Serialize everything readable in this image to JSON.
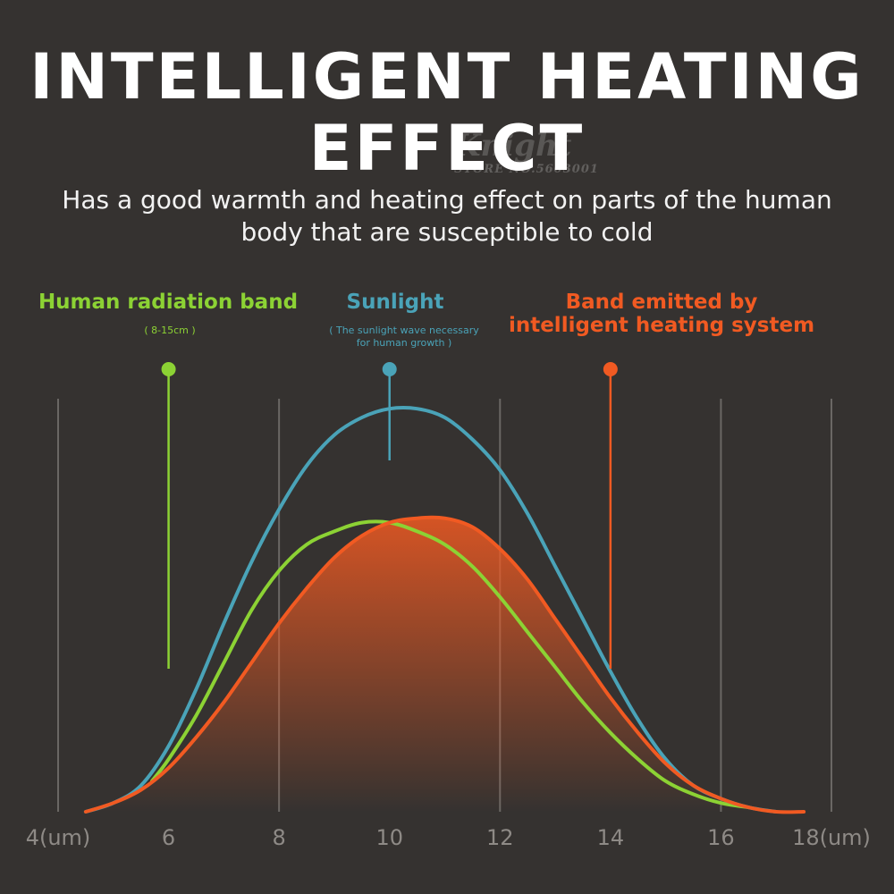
{
  "header": {
    "title_line1": "INTELLIGENT HEATING",
    "title_line2": "EFFECT",
    "subtitle_line1": "Has a good warmth and heating effect on parts of the human",
    "subtitle_line2": "body that are susceptible to cold",
    "watermark_logo": "Knight",
    "watermark_store": "STORE NO.5603001"
  },
  "colors": {
    "background": "#353230",
    "green": "#8cd234",
    "blue": "#4aa3b8",
    "orange": "#f15a22",
    "gridline": "#6a6764",
    "tick_text": "#8e8a86"
  },
  "chart_data": {
    "type": "line",
    "x_ticks": [
      {
        "value": 4,
        "label": "4(um)"
      },
      {
        "value": 6,
        "label": "6"
      },
      {
        "value": 8,
        "label": "8"
      },
      {
        "value": 10,
        "label": "10"
      },
      {
        "value": 12,
        "label": "12"
      },
      {
        "value": 14,
        "label": "14"
      },
      {
        "value": 16,
        "label": "16"
      },
      {
        "value": 18,
        "label": "18(um)"
      }
    ],
    "xlim": [
      4,
      18
    ],
    "ylim": [
      0,
      1
    ],
    "gridlines": [
      4,
      8,
      12,
      16,
      18
    ],
    "series": [
      {
        "name": "Human radiation band",
        "note": "( 8-15cm )",
        "color": "green",
        "marker_x": 6,
        "x": [
          5.7,
          6.0,
          6.5,
          7.0,
          7.5,
          8.0,
          8.5,
          9.0,
          9.5,
          10.0,
          10.5,
          11.0,
          11.5,
          12.0,
          12.5,
          13.0,
          13.5,
          14.0,
          14.5,
          15.0,
          15.5,
          16.0,
          16.5
        ],
        "values": [
          0.07,
          0.12,
          0.22,
          0.34,
          0.46,
          0.55,
          0.61,
          0.64,
          0.66,
          0.66,
          0.64,
          0.61,
          0.56,
          0.49,
          0.41,
          0.33,
          0.25,
          0.18,
          0.12,
          0.07,
          0.04,
          0.02,
          0.01
        ]
      },
      {
        "name": "Sunlight",
        "note_line1": "( The sunlight wave necessary",
        "note_line2": "for human growth )",
        "color": "blue",
        "marker_x": 10,
        "x": [
          4.5,
          5.0,
          5.5,
          6.0,
          6.5,
          7.0,
          7.5,
          8.0,
          8.5,
          9.0,
          9.5,
          10.0,
          10.5,
          11.0,
          11.5,
          12.0,
          12.5,
          13.0,
          13.5,
          14.0,
          14.5,
          15.0,
          15.5,
          16.0,
          16.5,
          17.0
        ],
        "values": [
          0.0,
          0.02,
          0.06,
          0.15,
          0.28,
          0.43,
          0.57,
          0.69,
          0.79,
          0.86,
          0.9,
          0.92,
          0.92,
          0.9,
          0.85,
          0.78,
          0.68,
          0.56,
          0.44,
          0.32,
          0.21,
          0.12,
          0.06,
          0.03,
          0.01,
          0.0
        ]
      },
      {
        "name_line1": "Band emitted by",
        "name_line2": "intelligent heating system",
        "color": "orange",
        "marker_x": 14,
        "x": [
          4.5,
          5.0,
          5.5,
          6.0,
          6.5,
          7.0,
          7.5,
          8.0,
          8.5,
          9.0,
          9.5,
          10.0,
          10.5,
          11.0,
          11.5,
          12.0,
          12.5,
          13.0,
          13.5,
          14.0,
          14.5,
          15.0,
          15.5,
          16.0,
          16.5,
          17.0,
          17.5
        ],
        "values": [
          0.0,
          0.02,
          0.05,
          0.1,
          0.17,
          0.25,
          0.34,
          0.43,
          0.51,
          0.58,
          0.63,
          0.66,
          0.67,
          0.67,
          0.65,
          0.6,
          0.53,
          0.44,
          0.35,
          0.26,
          0.18,
          0.11,
          0.06,
          0.03,
          0.01,
          0.0,
          0.0
        ]
      }
    ]
  }
}
